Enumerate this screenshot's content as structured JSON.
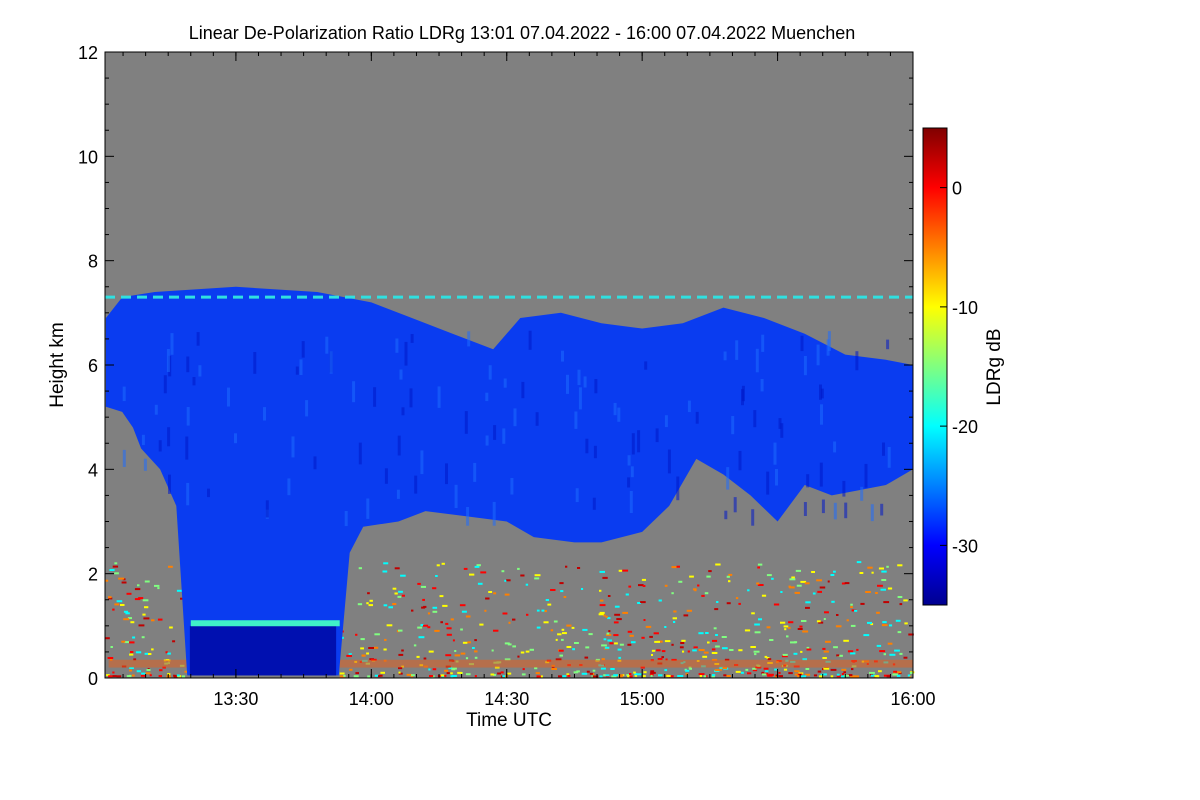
{
  "chart_data": {
    "type": "heatmap",
    "title": "Linear De-Polarization Ratio LDRg   13:01 07.04.2022 - 16:00 07.04.2022 Muenchen",
    "xlabel": "Time UTC",
    "ylabel": "Height km",
    "xlim": [
      "13:01",
      "16:00"
    ],
    "ylim": [
      0,
      12
    ],
    "x_ticks": [
      "13:30",
      "14:00",
      "14:30",
      "15:00",
      "15:30",
      "16:00"
    ],
    "y_ticks": [
      "0",
      "2",
      "4",
      "6",
      "8",
      "10",
      "12"
    ],
    "colorbar": {
      "label": "LDRg dB",
      "range": [
        -35,
        5
      ],
      "ticks": [
        "0",
        "-10",
        "-20",
        "-30"
      ],
      "colormap": [
        "#00008f",
        "#0000ff",
        "#0080ff",
        "#00ffff",
        "#80ff80",
        "#ffff00",
        "#ff8000",
        "#ff0000",
        "#800000"
      ]
    },
    "background_color": "#808080",
    "layers": [
      {
        "name": "cloud",
        "ldr_db": -30,
        "color": "#0a3cf0",
        "top_km": [
          [
            13.02,
            6.9
          ],
          [
            13.08,
            7.3
          ],
          [
            13.2,
            7.4
          ],
          [
            13.5,
            7.5
          ],
          [
            13.8,
            7.4
          ],
          [
            14.0,
            7.2
          ],
          [
            14.15,
            6.9
          ],
          [
            14.3,
            6.6
          ],
          [
            14.45,
            6.3
          ],
          [
            14.55,
            6.9
          ],
          [
            14.7,
            7.0
          ],
          [
            14.85,
            6.8
          ],
          [
            15.0,
            6.7
          ],
          [
            15.15,
            6.8
          ],
          [
            15.3,
            7.1
          ],
          [
            15.45,
            6.9
          ],
          [
            15.6,
            6.6
          ],
          [
            15.75,
            6.2
          ],
          [
            15.9,
            6.1
          ],
          [
            16.0,
            6.0
          ]
        ],
        "base_km": [
          [
            13.02,
            5.2
          ],
          [
            13.08,
            5.1
          ],
          [
            13.12,
            4.8
          ],
          [
            13.15,
            4.4
          ],
          [
            13.22,
            4.0
          ],
          [
            13.28,
            3.3
          ],
          [
            13.32,
            0.05
          ],
          [
            13.88,
            0.05
          ],
          [
            13.92,
            2.4
          ],
          [
            13.97,
            2.9
          ],
          [
            14.1,
            3.0
          ],
          [
            14.2,
            3.2
          ],
          [
            14.35,
            3.1
          ],
          [
            14.5,
            3.0
          ],
          [
            14.6,
            2.7
          ],
          [
            14.75,
            2.6
          ],
          [
            14.85,
            2.6
          ],
          [
            15.0,
            2.8
          ],
          [
            15.1,
            3.3
          ],
          [
            15.2,
            4.2
          ],
          [
            15.3,
            3.9
          ],
          [
            15.4,
            3.5
          ],
          [
            15.5,
            3.0
          ],
          [
            15.6,
            3.7
          ],
          [
            15.7,
            3.5
          ],
          [
            15.8,
            3.6
          ],
          [
            15.9,
            3.7
          ],
          [
            16.0,
            4.0
          ]
        ]
      }
    ],
    "features": [
      {
        "name": "melting-layer",
        "ldr_db": -18,
        "color": "#40f0c8",
        "height_km": 1.05,
        "time": [
          "13:20",
          "13:53"
        ]
      },
      {
        "name": "ldr-line",
        "ldr_db": -20,
        "color": "#30e0e0",
        "height_km": 7.3,
        "time": [
          "13:01",
          "16:00"
        ]
      },
      {
        "name": "boundary-layer-noise",
        "ldr_db": -5,
        "color": "#ff8000",
        "height_km": [
          0.1,
          2.3
        ],
        "time": [
          "13:01",
          "16:00"
        ]
      }
    ]
  }
}
